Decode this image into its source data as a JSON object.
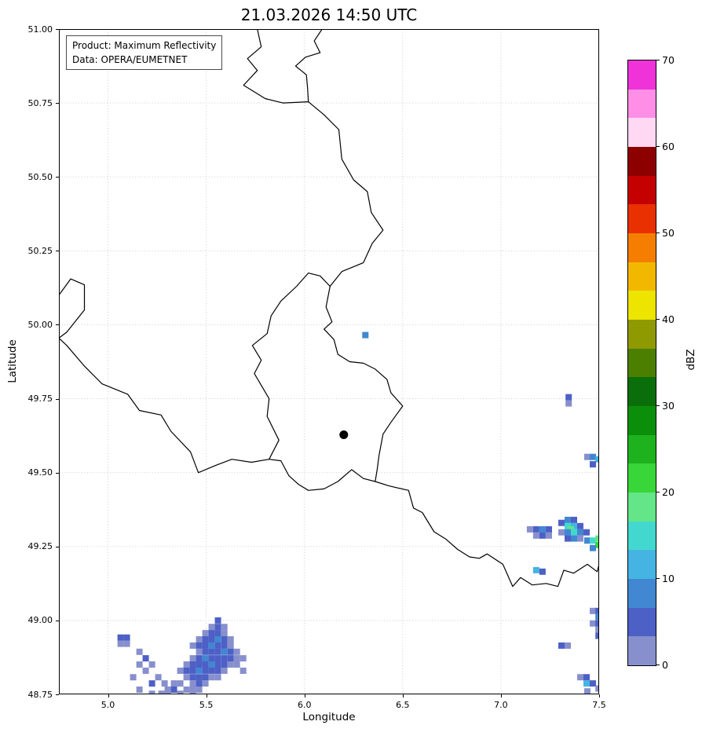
{
  "title": "21.03.2026 14:50 UTC",
  "annotation": {
    "line1": "Product: Maximum Reflectivity",
    "line2": "Data: OPERA/EUMETNET"
  },
  "axes": {
    "xlabel": "Longitude",
    "ylabel": "Latitude",
    "xlim": [
      4.75,
      7.5
    ],
    "ylim": [
      48.75,
      51.0
    ],
    "xticks": [
      {
        "value": 5.0,
        "label": "5.0"
      },
      {
        "value": 5.5,
        "label": "5.5"
      },
      {
        "value": 6.0,
        "label": "6.0"
      },
      {
        "value": 6.5,
        "label": "6.5"
      },
      {
        "value": 7.0,
        "label": "7.0"
      },
      {
        "value": 7.5,
        "label": "7.5"
      }
    ],
    "yticks": [
      {
        "value": 48.75,
        "label": "48.75"
      },
      {
        "value": 49.0,
        "label": "49.00"
      },
      {
        "value": 49.25,
        "label": "49.25"
      },
      {
        "value": 49.5,
        "label": "49.50"
      },
      {
        "value": 49.75,
        "label": "49.75"
      },
      {
        "value": 50.0,
        "label": "50.00"
      },
      {
        "value": 50.25,
        "label": "50.25"
      },
      {
        "value": 50.5,
        "label": "50.50"
      },
      {
        "value": 50.75,
        "label": "50.75"
      },
      {
        "value": 51.0,
        "label": "51.00"
      }
    ],
    "grid": "dotted"
  },
  "colorbar": {
    "label": "dBZ",
    "min": 0,
    "max": 70,
    "ticks": [
      {
        "value": 0,
        "label": "0"
      },
      {
        "value": 10,
        "label": "10"
      },
      {
        "value": 20,
        "label": "20"
      },
      {
        "value": 30,
        "label": "30"
      },
      {
        "value": 40,
        "label": "40"
      },
      {
        "value": 50,
        "label": "50"
      },
      {
        "value": 60,
        "label": "60"
      },
      {
        "value": 70,
        "label": "70"
      }
    ],
    "colors": [
      "#8790cd",
      "#4d60c6",
      "#4187d1",
      "#45b4e2",
      "#43d8cf",
      "#63e588",
      "#38d638",
      "#1eb21e",
      "#0b8f0b",
      "#0a6e0a",
      "#4c7f00",
      "#8f9900",
      "#ede400",
      "#f2b800",
      "#f57e00",
      "#e93000",
      "#c40000",
      "#8c0000",
      "#ffd9f4",
      "#ff8fe6",
      "#ef33d8"
    ]
  },
  "map": {
    "marker": {
      "lon": 6.2,
      "lat": 49.628,
      "color": "#000000"
    },
    "borders": [
      {
        "name": "belgium-netherlands-border",
        "closed": false,
        "points": [
          [
            5.76,
            51.0
          ],
          [
            5.78,
            50.94
          ],
          [
            5.71,
            50.9
          ],
          [
            5.76,
            50.86
          ],
          [
            5.69,
            50.81
          ],
          [
            5.8,
            50.765
          ],
          [
            5.89,
            50.75
          ],
          [
            6.02,
            50.754
          ]
        ]
      },
      {
        "name": "netherlands-germany-border",
        "closed": false,
        "points": [
          [
            6.02,
            50.754
          ],
          [
            6.016,
            50.8
          ],
          [
            6.01,
            50.845
          ],
          [
            5.955,
            50.875
          ],
          [
            6.005,
            50.905
          ],
          [
            6.08,
            50.92
          ],
          [
            6.05,
            50.96
          ],
          [
            6.09,
            51.0
          ]
        ]
      },
      {
        "name": "belgium-germany-border",
        "closed": false,
        "points": [
          [
            6.02,
            50.754
          ],
          [
            6.1,
            50.71
          ],
          [
            6.175,
            50.66
          ],
          [
            6.19,
            50.56
          ],
          [
            6.25,
            50.49
          ],
          [
            6.32,
            50.45
          ],
          [
            6.34,
            50.38
          ],
          [
            6.4,
            50.32
          ],
          [
            6.345,
            50.275
          ],
          [
            6.3,
            50.21
          ],
          [
            6.19,
            50.18
          ],
          [
            6.13,
            50.13
          ]
        ]
      },
      {
        "name": "luxembourg-border",
        "closed": true,
        "points": [
          [
            6.13,
            50.13
          ],
          [
            6.11,
            50.06
          ],
          [
            6.14,
            50.01
          ],
          [
            6.1,
            49.985
          ],
          [
            6.15,
            49.95
          ],
          [
            6.17,
            49.9
          ],
          [
            6.23,
            49.875
          ],
          [
            6.3,
            49.87
          ],
          [
            6.36,
            49.85
          ],
          [
            6.42,
            49.815
          ],
          [
            6.44,
            49.77
          ],
          [
            6.5,
            49.725
          ],
          [
            6.44,
            49.67
          ],
          [
            6.4,
            49.63
          ],
          [
            6.38,
            49.56
          ],
          [
            6.37,
            49.51
          ],
          [
            6.36,
            49.47
          ],
          [
            6.3,
            49.48
          ],
          [
            6.24,
            49.51
          ],
          [
            6.17,
            49.47
          ],
          [
            6.1,
            49.445
          ],
          [
            6.02,
            49.44
          ],
          [
            5.97,
            49.46
          ],
          [
            5.92,
            49.49
          ],
          [
            5.88,
            49.54
          ],
          [
            5.82,
            49.545
          ],
          [
            5.87,
            49.61
          ],
          [
            5.81,
            49.69
          ],
          [
            5.82,
            49.75
          ],
          [
            5.745,
            49.835
          ],
          [
            5.78,
            49.88
          ],
          [
            5.735,
            49.93
          ],
          [
            5.81,
            49.97
          ],
          [
            5.83,
            50.03
          ],
          [
            5.88,
            50.08
          ],
          [
            5.96,
            50.13
          ],
          [
            6.02,
            50.175
          ],
          [
            6.08,
            50.165
          ]
        ]
      },
      {
        "name": "france-belgium-border",
        "closed": false,
        "points": [
          [
            4.75,
            50.1
          ],
          [
            4.81,
            50.155
          ],
          [
            4.88,
            50.135
          ],
          [
            4.88,
            50.05
          ],
          [
            4.79,
            49.975
          ],
          [
            4.75,
            49.955
          ],
          [
            4.79,
            49.93
          ],
          [
            4.88,
            49.86
          ],
          [
            4.97,
            49.8
          ],
          [
            5.1,
            49.765
          ],
          [
            5.16,
            49.71
          ],
          [
            5.27,
            49.695
          ],
          [
            5.32,
            49.64
          ],
          [
            5.42,
            49.57
          ],
          [
            5.46,
            49.5
          ],
          [
            5.55,
            49.525
          ],
          [
            5.63,
            49.545
          ],
          [
            5.73,
            49.535
          ],
          [
            5.82,
            49.545
          ]
        ]
      },
      {
        "name": "france-germany-border",
        "closed": false,
        "points": [
          [
            6.36,
            49.47
          ],
          [
            6.43,
            49.455
          ],
          [
            6.53,
            49.44
          ],
          [
            6.555,
            49.38
          ],
          [
            6.6,
            49.365
          ],
          [
            6.66,
            49.3
          ],
          [
            6.72,
            49.275
          ],
          [
            6.78,
            49.24
          ],
          [
            6.84,
            49.215
          ],
          [
            6.89,
            49.21
          ],
          [
            6.93,
            49.225
          ],
          [
            7.01,
            49.19
          ],
          [
            7.06,
            49.115
          ],
          [
            7.1,
            49.145
          ],
          [
            7.16,
            49.12
          ],
          [
            7.23,
            49.125
          ],
          [
            7.29,
            49.115
          ],
          [
            7.32,
            49.17
          ],
          [
            7.37,
            49.16
          ],
          [
            7.44,
            49.19
          ],
          [
            7.49,
            49.165
          ],
          [
            7.5,
            49.19
          ]
        ]
      }
    ]
  },
  "chart_data": {
    "type": "heatmap",
    "title": "21.03.2026 14:50 UTC",
    "xlabel": "Longitude",
    "ylabel": "Latitude",
    "xlim": [
      4.75,
      7.5
    ],
    "ylim": [
      48.75,
      51.0
    ],
    "value_label": "dBZ",
    "value_range": [
      0,
      70
    ],
    "cells_format": [
      "lon",
      "lat",
      "dbz"
    ],
    "cells": [
      [
        5.56,
        49.0,
        5
      ],
      [
        5.528,
        48.978,
        2
      ],
      [
        5.56,
        48.978,
        5
      ],
      [
        5.592,
        48.978,
        2
      ],
      [
        5.496,
        48.957,
        2
      ],
      [
        5.528,
        48.957,
        5
      ],
      [
        5.56,
        48.957,
        5
      ],
      [
        5.592,
        48.957,
        2
      ],
      [
        5.464,
        48.936,
        2
      ],
      [
        5.496,
        48.936,
        5
      ],
      [
        5.528,
        48.936,
        5
      ],
      [
        5.56,
        48.936,
        8
      ],
      [
        5.592,
        48.936,
        5
      ],
      [
        5.624,
        48.936,
        2
      ],
      [
        5.432,
        48.915,
        2
      ],
      [
        5.464,
        48.915,
        5
      ],
      [
        5.496,
        48.915,
        5
      ],
      [
        5.528,
        48.915,
        8
      ],
      [
        5.56,
        48.915,
        5
      ],
      [
        5.592,
        48.915,
        5
      ],
      [
        5.624,
        48.915,
        2
      ],
      [
        5.464,
        48.894,
        2
      ],
      [
        5.496,
        48.894,
        5
      ],
      [
        5.528,
        48.894,
        5
      ],
      [
        5.56,
        48.894,
        5
      ],
      [
        5.592,
        48.894,
        8
      ],
      [
        5.624,
        48.894,
        5
      ],
      [
        5.656,
        48.894,
        2
      ],
      [
        5.432,
        48.872,
        2
      ],
      [
        5.464,
        48.872,
        5
      ],
      [
        5.496,
        48.872,
        8
      ],
      [
        5.528,
        48.872,
        5
      ],
      [
        5.56,
        48.872,
        5
      ],
      [
        5.592,
        48.872,
        5
      ],
      [
        5.624,
        48.872,
        5
      ],
      [
        5.656,
        48.872,
        2
      ],
      [
        5.688,
        48.872,
        2
      ],
      [
        5.4,
        48.851,
        2
      ],
      [
        5.432,
        48.851,
        5
      ],
      [
        5.464,
        48.851,
        5
      ],
      [
        5.496,
        48.851,
        5
      ],
      [
        5.528,
        48.851,
        8
      ],
      [
        5.56,
        48.851,
        5
      ],
      [
        5.592,
        48.851,
        5
      ],
      [
        5.624,
        48.851,
        2
      ],
      [
        5.656,
        48.851,
        2
      ],
      [
        5.368,
        48.83,
        2
      ],
      [
        5.4,
        48.83,
        5
      ],
      [
        5.432,
        48.83,
        5
      ],
      [
        5.464,
        48.83,
        8
      ],
      [
        5.496,
        48.83,
        5
      ],
      [
        5.528,
        48.83,
        5
      ],
      [
        5.56,
        48.83,
        5
      ],
      [
        5.592,
        48.83,
        2
      ],
      [
        5.688,
        48.83,
        2
      ],
      [
        5.4,
        48.808,
        2
      ],
      [
        5.432,
        48.808,
        5
      ],
      [
        5.464,
        48.808,
        5
      ],
      [
        5.496,
        48.808,
        5
      ],
      [
        5.528,
        48.808,
        2
      ],
      [
        5.56,
        48.808,
        2
      ],
      [
        5.336,
        48.787,
        2
      ],
      [
        5.368,
        48.787,
        2
      ],
      [
        5.432,
        48.787,
        2
      ],
      [
        5.464,
        48.787,
        5
      ],
      [
        5.496,
        48.787,
        2
      ],
      [
        5.304,
        48.766,
        2
      ],
      [
        5.336,
        48.766,
        5
      ],
      [
        5.4,
        48.766,
        2
      ],
      [
        5.432,
        48.766,
        2
      ],
      [
        5.464,
        48.766,
        2
      ],
      [
        5.272,
        48.752,
        2
      ],
      [
        5.304,
        48.752,
        2
      ],
      [
        5.368,
        48.752,
        2
      ],
      [
        5.432,
        48.752,
        2
      ],
      [
        5.064,
        48.942,
        5
      ],
      [
        5.096,
        48.942,
        5
      ],
      [
        5.064,
        48.921,
        2
      ],
      [
        5.096,
        48.921,
        2
      ],
      [
        5.16,
        48.894,
        2
      ],
      [
        5.192,
        48.872,
        5
      ],
      [
        5.16,
        48.851,
        2
      ],
      [
        5.224,
        48.851,
        2
      ],
      [
        5.192,
        48.83,
        2
      ],
      [
        5.128,
        48.808,
        2
      ],
      [
        5.256,
        48.808,
        2
      ],
      [
        5.224,
        48.787,
        5
      ],
      [
        5.288,
        48.787,
        2
      ],
      [
        5.16,
        48.766,
        2
      ],
      [
        5.224,
        48.752,
        2
      ],
      [
        6.31,
        49.965,
        8
      ],
      [
        7.345,
        49.755,
        5
      ],
      [
        7.345,
        49.734,
        2
      ],
      [
        7.44,
        49.553,
        2
      ],
      [
        7.468,
        49.553,
        8
      ],
      [
        7.497,
        49.545,
        11
      ],
      [
        7.468,
        49.528,
        5
      ],
      [
        7.148,
        49.308,
        2
      ],
      [
        7.18,
        49.308,
        5
      ],
      [
        7.212,
        49.308,
        8
      ],
      [
        7.244,
        49.308,
        5
      ],
      [
        7.18,
        49.287,
        2
      ],
      [
        7.212,
        49.287,
        5
      ],
      [
        7.244,
        49.287,
        2
      ],
      [
        7.308,
        49.33,
        5
      ],
      [
        7.34,
        49.34,
        8
      ],
      [
        7.372,
        49.34,
        5
      ],
      [
        7.34,
        49.319,
        14
      ],
      [
        7.372,
        49.319,
        11
      ],
      [
        7.404,
        49.319,
        5
      ],
      [
        7.356,
        49.308,
        18
      ],
      [
        7.308,
        49.298,
        2
      ],
      [
        7.34,
        49.298,
        8
      ],
      [
        7.372,
        49.298,
        14
      ],
      [
        7.404,
        49.298,
        8
      ],
      [
        7.436,
        49.298,
        5
      ],
      [
        7.34,
        49.277,
        5
      ],
      [
        7.372,
        49.277,
        8
      ],
      [
        7.404,
        49.277,
        2
      ],
      [
        7.44,
        49.27,
        8
      ],
      [
        7.468,
        49.27,
        14
      ],
      [
        7.497,
        49.277,
        18
      ],
      [
        7.497,
        49.255,
        21
      ],
      [
        7.468,
        49.245,
        8
      ],
      [
        7.18,
        49.17,
        11
      ],
      [
        7.212,
        49.165,
        5
      ],
      [
        7.468,
        49.032,
        2
      ],
      [
        7.497,
        49.032,
        5
      ],
      [
        7.497,
        49.011,
        8
      ],
      [
        7.468,
        48.99,
        2
      ],
      [
        7.497,
        48.99,
        5
      ],
      [
        7.497,
        48.969,
        2
      ],
      [
        7.497,
        48.948,
        5
      ],
      [
        7.308,
        48.915,
        5
      ],
      [
        7.34,
        48.915,
        2
      ],
      [
        7.404,
        48.808,
        2
      ],
      [
        7.436,
        48.808,
        5
      ],
      [
        7.436,
        48.787,
        11
      ],
      [
        7.468,
        48.787,
        5
      ],
      [
        7.497,
        48.77,
        2
      ],
      [
        7.44,
        48.76,
        2
      ]
    ]
  }
}
